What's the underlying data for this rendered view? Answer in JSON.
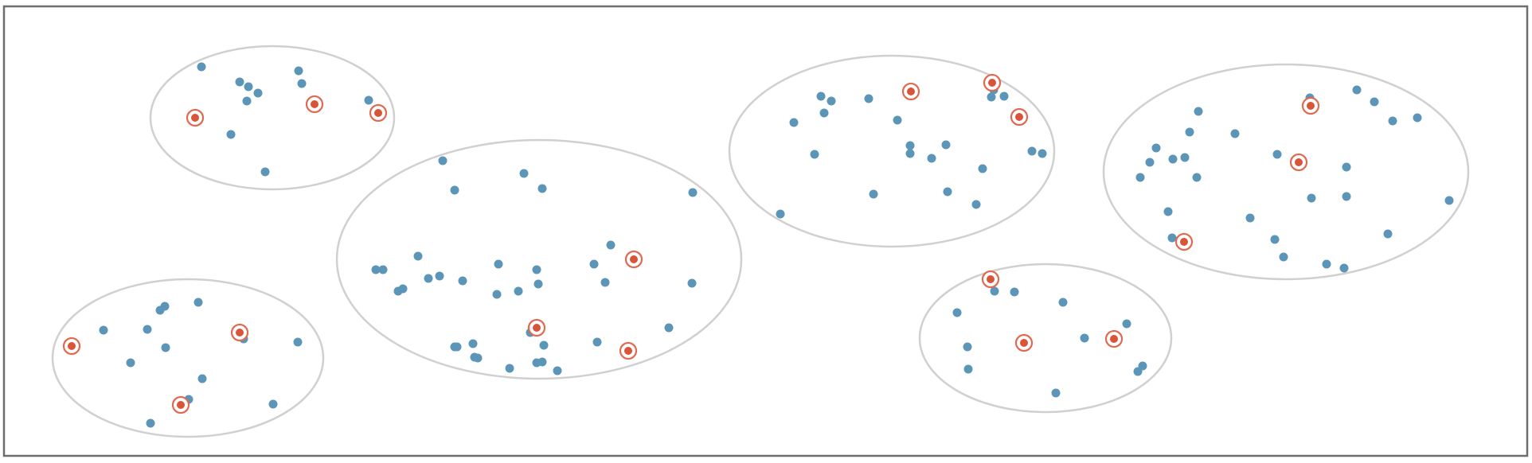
{
  "colors": {
    "background": "#ffffff",
    "frame": "#6e6e6e",
    "cluster_outline": "#d0d0d0",
    "point": "#5b95b8",
    "selected_fill": "#d9553a",
    "selected_ring": "#e06a50"
  },
  "clusters": [
    {
      "id": "cluster-top-left",
      "points": [
        [
          253,
          84
        ],
        [
          301,
          103
        ],
        [
          312,
          109
        ],
        [
          324,
          117
        ],
        [
          310,
          127
        ],
        [
          375,
          89
        ],
        [
          379,
          105
        ],
        [
          290,
          169
        ],
        [
          333,
          216
        ],
        [
          463,
          126
        ]
      ],
      "selected": [
        [
          245,
          148
        ],
        [
          395,
          131
        ],
        [
          475,
          142
        ]
      ]
    },
    {
      "id": "cluster-bottom-left",
      "points": [
        [
          130,
          415
        ],
        [
          185,
          414
        ],
        [
          201,
          390
        ],
        [
          207,
          385
        ],
        [
          249,
          380
        ],
        [
          208,
          437
        ],
        [
          306,
          426
        ],
        [
          164,
          456
        ],
        [
          254,
          476
        ],
        [
          237,
          502
        ],
        [
          189,
          532
        ],
        [
          343,
          508
        ],
        [
          374,
          430
        ]
      ],
      "selected": [
        [
          90,
          435
        ],
        [
          301,
          418
        ],
        [
          227,
          509
        ]
      ]
    },
    {
      "id": "cluster-center",
      "points": [
        [
          556,
          202
        ],
        [
          658,
          218
        ],
        [
          571,
          239
        ],
        [
          681,
          237
        ],
        [
          870,
          242
        ],
        [
          525,
          322
        ],
        [
          472,
          339
        ],
        [
          481,
          339
        ],
        [
          626,
          332
        ],
        [
          538,
          350
        ],
        [
          552,
          347
        ],
        [
          581,
          353
        ],
        [
          674,
          339
        ],
        [
          746,
          332
        ],
        [
          767,
          308
        ],
        [
          500,
          366
        ],
        [
          506,
          363
        ],
        [
          624,
          370
        ],
        [
          651,
          366
        ],
        [
          676,
          357
        ],
        [
          869,
          356
        ],
        [
          760,
          355
        ],
        [
          840,
          412
        ],
        [
          666,
          418
        ],
        [
          683,
          434
        ],
        [
          571,
          436
        ],
        [
          594,
          432
        ],
        [
          574,
          436
        ],
        [
          750,
          430
        ],
        [
          596,
          449
        ],
        [
          600,
          450
        ],
        [
          640,
          463
        ],
        [
          674,
          456
        ],
        [
          681,
          455
        ],
        [
          700,
          466
        ]
      ],
      "selected": [
        [
          796,
          326
        ],
        [
          674,
          412
        ],
        [
          789,
          441
        ]
      ]
    },
    {
      "id": "cluster-top-right",
      "points": [
        [
          1031,
          121
        ],
        [
          1044,
          127
        ],
        [
          1091,
          124
        ],
        [
          1245,
          122
        ],
        [
          1261,
          121
        ],
        [
          1248,
          113
        ],
        [
          1035,
          142
        ],
        [
          997,
          154
        ],
        [
          1127,
          151
        ],
        [
          1023,
          194
        ],
        [
          1143,
          183
        ],
        [
          1143,
          193
        ],
        [
          1170,
          199
        ],
        [
          1188,
          182
        ],
        [
          1296,
          190
        ],
        [
          1309,
          193
        ],
        [
          1234,
          212
        ],
        [
          1097,
          244
        ],
        [
          1190,
          241
        ],
        [
          1226,
          257
        ],
        [
          980,
          269
        ]
      ],
      "selected": [
        [
          1144,
          115
        ],
        [
          1246,
          104
        ],
        [
          1280,
          147
        ]
      ]
    },
    {
      "id": "cluster-bottom-right",
      "points": [
        [
          1249,
          366
        ],
        [
          1274,
          367
        ],
        [
          1335,
          380
        ],
        [
          1202,
          393
        ],
        [
          1415,
          407
        ],
        [
          1362,
          425
        ],
        [
          1215,
          436
        ],
        [
          1216,
          464
        ],
        [
          1435,
          460
        ],
        [
          1429,
          467
        ],
        [
          1326,
          494
        ]
      ],
      "selected": [
        [
          1244,
          351
        ],
        [
          1286,
          431
        ],
        [
          1399,
          426
        ]
      ]
    },
    {
      "id": "cluster-far-right",
      "points": [
        [
          1645,
          123
        ],
        [
          1704,
          113
        ],
        [
          1726,
          128
        ],
        [
          1505,
          140
        ],
        [
          1452,
          186
        ],
        [
          1749,
          152
        ],
        [
          1780,
          148
        ],
        [
          1494,
          166
        ],
        [
          1551,
          168
        ],
        [
          1604,
          194
        ],
        [
          1473,
          200
        ],
        [
          1444,
          204
        ],
        [
          1488,
          198
        ],
        [
          1691,
          210
        ],
        [
          1432,
          223
        ],
        [
          1503,
          223
        ],
        [
          1691,
          247
        ],
        [
          1647,
          249
        ],
        [
          1820,
          252
        ],
        [
          1467,
          266
        ],
        [
          1570,
          274
        ],
        [
          1472,
          299
        ],
        [
          1601,
          301
        ],
        [
          1743,
          294
        ],
        [
          1612,
          323
        ],
        [
          1666,
          332
        ],
        [
          1688,
          337
        ]
      ],
      "selected": [
        [
          1646,
          133
        ],
        [
          1631,
          204
        ],
        [
          1487,
          304
        ]
      ]
    }
  ]
}
